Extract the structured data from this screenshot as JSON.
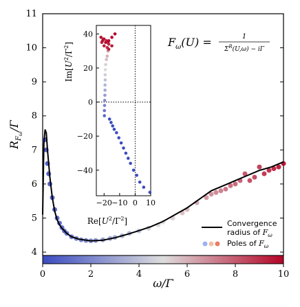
{
  "chart_data": [
    {
      "type": "scatter",
      "xlabel": "ω/Γ",
      "ylabel": "R_{F_ω}/Γ",
      "xlim": [
        0,
        10
      ],
      "ylim": [
        3.9,
        11
      ],
      "x_ticks": [
        "0",
        "2",
        "4",
        "6",
        "8",
        "10"
      ],
      "y_ticks": [
        "4",
        "5",
        "6",
        "7",
        "8",
        "9",
        "10",
        "11"
      ],
      "formula": "F_ω(U) = 1 / (Σ^R(U,ω) − iΓ)",
      "colorbar": {
        "min": 0,
        "max": 10,
        "low_color": "#3b4cc0",
        "mid_color": "#dddddd",
        "high_color": "#b40426"
      },
      "series": [
        {
          "name": "Convergence radius of F_ω",
          "kind": "line",
          "color": "#000000",
          "x": [
            0.0,
            0.05,
            0.1,
            0.15,
            0.2,
            0.3,
            0.4,
            0.5,
            0.6,
            0.7,
            0.8,
            1.0,
            1.2,
            1.5,
            2.0,
            2.5,
            3.0,
            3.5,
            4.0,
            4.5,
            5.0,
            5.5,
            6.0,
            6.5,
            7.0,
            7.5,
            8.0,
            8.5,
            9.0,
            9.5,
            10.0
          ],
          "y": [
            5.1,
            7.2,
            7.6,
            7.5,
            7.0,
            6.2,
            5.6,
            5.2,
            4.95,
            4.8,
            4.7,
            4.55,
            4.45,
            4.38,
            4.33,
            4.35,
            4.42,
            4.52,
            4.63,
            4.75,
            4.9,
            5.1,
            5.3,
            5.55,
            5.8,
            5.95,
            6.1,
            6.25,
            6.4,
            6.5,
            6.65
          ]
        },
        {
          "name": "Poles of F_ω",
          "kind": "scatter",
          "x": [
            0.1,
            0.15,
            0.2,
            0.25,
            0.3,
            0.4,
            0.5,
            0.6,
            0.7,
            0.8,
            0.9,
            1.0,
            1.2,
            1.4,
            1.6,
            1.8,
            2.0,
            2.2,
            2.5,
            2.8,
            3.0,
            3.3,
            3.6,
            4.0,
            4.4,
            4.8,
            5.0,
            5.4,
            5.8,
            6.0,
            6.4,
            6.8,
            7.0,
            7.2,
            7.4,
            7.6,
            7.8,
            8.0,
            8.2,
            8.4,
            8.6,
            8.8,
            9.0,
            9.2,
            9.4,
            9.6,
            9.8,
            10.0
          ],
          "y": [
            7.3,
            7.0,
            6.6,
            6.3,
            6.0,
            5.6,
            5.25,
            5.0,
            4.85,
            4.72,
            4.62,
            4.55,
            4.45,
            4.4,
            4.36,
            4.34,
            4.33,
            4.34,
            4.36,
            4.4,
            4.43,
            4.48,
            4.55,
            4.62,
            4.7,
            4.8,
            4.88,
            5.0,
            5.15,
            5.25,
            5.45,
            5.6,
            5.7,
            5.75,
            5.8,
            5.85,
            5.95,
            6.0,
            6.1,
            6.3,
            6.1,
            6.2,
            6.5,
            6.3,
            6.4,
            6.45,
            6.5,
            6.6
          ]
        }
      ]
    },
    {
      "type": "scatter",
      "xlabel": "Re[U²/Γ²]",
      "ylabel": "Im[U²/Γ²]",
      "xlim": [
        -25,
        10
      ],
      "ylim": [
        -55,
        45
      ],
      "x_ticks": [
        "−20",
        "−10",
        "0",
        "10"
      ],
      "y_ticks": [
        "40",
        "20",
        "0",
        "−20",
        "−40"
      ],
      "series": [
        {
          "name": "",
          "x": [
            -19.8,
            -19.8,
            -19.7,
            -19.6,
            -19.5,
            -19.4,
            -19.4,
            -19.3,
            -19.3,
            -19.2,
            -19.0,
            -18.5,
            -18.0,
            -17.5,
            -16.5,
            -15.5,
            -14.5,
            -13.5,
            -12.0,
            -10.5,
            -9.0,
            -7.5,
            -6.0,
            -4.5,
            -3.0,
            -1.0,
            1.0,
            3.0,
            5.5,
            9.5,
            -18.0,
            -17.0,
            -18.5,
            -20.0,
            -21.5,
            -20.0,
            -17.0,
            -15.0,
            -17.5,
            -20.5,
            -22.0,
            -21.0,
            -19.0,
            -17.0,
            -15.0,
            -13.0
          ],
          "y": [
            -8,
            -5,
            -2,
            1,
            4,
            7,
            10,
            13,
            16,
            19,
            22,
            25,
            27,
            30,
            -10,
            -12,
            -14,
            -16,
            -18,
            -21,
            -24,
            -27,
            -30,
            -33,
            -36,
            -40,
            -43,
            -47,
            -50,
            -53,
            32,
            34,
            36,
            37,
            35,
            33,
            31,
            33,
            35,
            37,
            38,
            36,
            35,
            36,
            38,
            40
          ]
        }
      ]
    }
  ],
  "legend": {
    "line_label_1": "Convergence",
    "line_label_2": "radius of F_ω",
    "poles_label": "Poles of F_ω"
  }
}
